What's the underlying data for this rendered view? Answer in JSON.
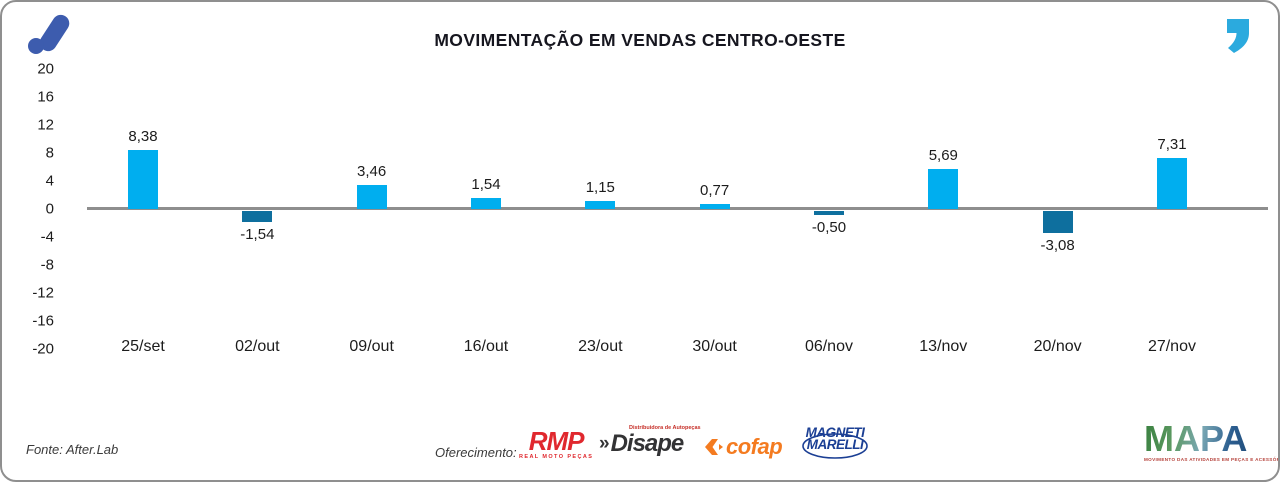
{
  "page": {
    "background": "#FFFFFF",
    "border_color": "#8F8F8F"
  },
  "header": {
    "title": "MOVIMENTAÇÃO EM VENDAS CENTRO-OESTE",
    "brand_mark_color": "#3D5CAE",
    "quote_icon_color": "#2BAADE"
  },
  "chart_data": {
    "type": "bar",
    "title": "MOVIMENTAÇÃO EM VENDAS CENTRO-OESTE",
    "categories": [
      "25/set",
      "02/out",
      "09/out",
      "16/out",
      "23/out",
      "30/out",
      "06/nov",
      "13/nov",
      "20/nov",
      "27/nov"
    ],
    "values": [
      8.38,
      -1.54,
      3.46,
      1.54,
      1.15,
      0.77,
      -0.5,
      5.69,
      -3.08,
      7.31
    ],
    "value_labels": [
      "8,38",
      "-1,54",
      "3,46",
      "1,54",
      "1,15",
      "0,77",
      "-0,50",
      "5,69",
      "-3,08",
      "7,31"
    ],
    "yticks": [
      20,
      16,
      12,
      8,
      4,
      0,
      -4,
      -8,
      -12,
      -16,
      -20
    ],
    "ylim": [
      -20,
      20
    ],
    "xlabel": "",
    "ylabel": "",
    "grid": false,
    "legend": null,
    "bar_color_positive": "#00AEEF",
    "bar_color_negative": "#0E6F9E",
    "zero_line_color": "#8E8E8E"
  },
  "footer": {
    "source": "Fonte: After.Lab",
    "sponsorship_label": "Oferecimento:",
    "sponsors": {
      "rmp": {
        "name": "RMP",
        "tagline": "REAL MOTO PEÇAS",
        "color": "#E0282E"
      },
      "disape": {
        "prefix": "»",
        "name": "Disape",
        "tagline": "Distribuidora de Autopeças",
        "color": "#333335",
        "tagline_color": "#C62F28"
      },
      "cofap": {
        "name": "cofap",
        "color": "#F47B20"
      },
      "magneti_marelli": {
        "line1": "MAGNETI",
        "line2": "MARELLI",
        "color": "#1B3F94"
      }
    },
    "mapa": {
      "name": "MAPA",
      "tagline": "MOVIMENTO DAS ATIVIDADES EM PEÇAS E ACESSÓRIOS",
      "tagline_color": "#B5413A"
    }
  }
}
